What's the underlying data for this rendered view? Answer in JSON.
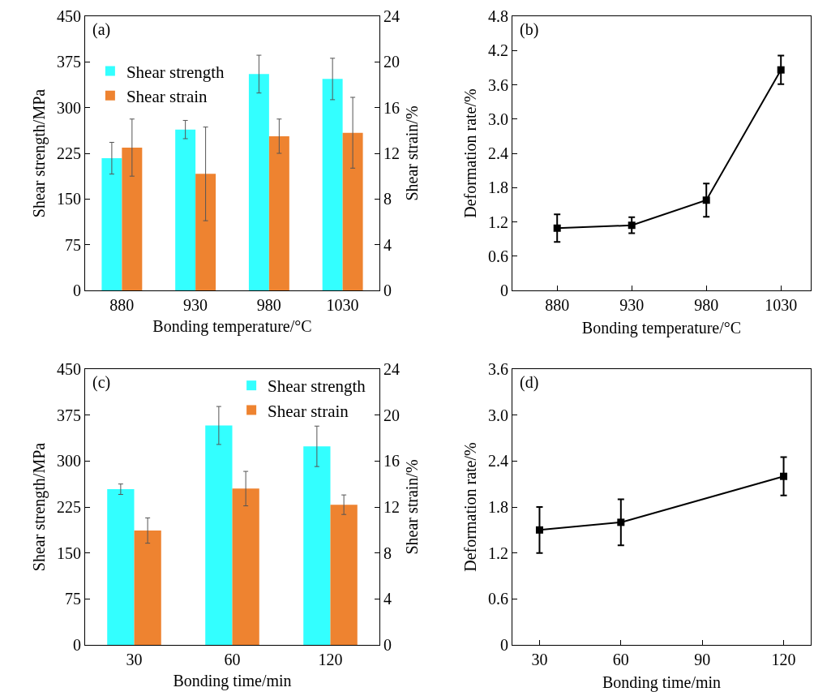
{
  "chart_data": [
    {
      "type": "bar",
      "xlabel": "Bonding temperature/°C",
      "ylabel": "Shear strength/MPa",
      "y2label": "Shear strain/%",
      "annotations": [
        "(a)"
      ],
      "categories": [
        "880",
        "930",
        "980",
        "1030"
      ],
      "series": [
        {
          "name": "Shear strength",
          "color": "#33ffff",
          "values": [
            217,
            264,
            355,
            347
          ],
          "errors": [
            26,
            15,
            31,
            34
          ]
        },
        {
          "name": "Shear strain",
          "color": "#ee8330",
          "axis": "y2",
          "values": [
            12.5,
            10.2,
            13.5,
            13.8
          ],
          "errors": [
            2.5,
            4.1,
            1.5,
            3.1
          ]
        }
      ],
      "ylim": [
        0,
        450
      ],
      "yticks": [
        0,
        75,
        150,
        225,
        300,
        375,
        450
      ],
      "y2lim": [
        0,
        24
      ],
      "y2ticks": [
        0,
        4,
        8,
        12,
        16,
        20,
        24
      ],
      "legend": "top left",
      "grid": false
    },
    {
      "type": "line",
      "xlabel": "Bonding temperature/°C",
      "ylabel": "Deformation rate/%",
      "annotations": [
        "(b)"
      ],
      "x": [
        880,
        930,
        980,
        1030
      ],
      "series": [
        {
          "color": "#000000",
          "values": [
            1.09,
            1.14,
            1.58,
            3.86
          ],
          "errors": [
            0.24,
            0.14,
            0.29,
            0.25
          ]
        }
      ],
      "xlim": [
        850,
        1050
      ],
      "xticks": [
        880,
        930,
        980,
        1030
      ],
      "ylim": [
        0,
        4.8
      ],
      "yticks": [
        0,
        0.6,
        1.2,
        1.8,
        2.4,
        {
          "value": 3.0,
          "label": "3.0"
        },
        3.6,
        4.2,
        4.8
      ],
      "marker": "square",
      "line_style": "solid",
      "legend": false,
      "grid": false
    },
    {
      "type": "bar",
      "xlabel": "Bonding time/min",
      "ylabel": "Shear strength/MPa",
      "y2label": "Shear strain/%",
      "annotations": [
        "(c)"
      ],
      "categories": [
        "30",
        "60",
        "120"
      ],
      "series": [
        {
          "name": "Shear strength",
          "color": "#33ffff",
          "values": [
            254,
            358,
            324
          ],
          "errors": [
            8.5,
            31,
            33
          ]
        },
        {
          "name": "Shear strain",
          "color": "#ee8330",
          "axis": "y2",
          "values": [
            9.95,
            13.6,
            12.2
          ],
          "errors": [
            1.1,
            1.5,
            0.85
          ]
        }
      ],
      "ylim": [
        0,
        450
      ],
      "yticks": [
        0,
        75,
        150,
        225,
        300,
        375,
        450
      ],
      "y2lim": [
        0,
        24
      ],
      "y2ticks": [
        0,
        4,
        8,
        12,
        16,
        20,
        24
      ],
      "legend": "top right",
      "grid": false
    },
    {
      "type": "line",
      "xlabel": "Bonding time/min",
      "ylabel": "Deformation rate/%",
      "annotations": [
        "(d)"
      ],
      "x": [
        30,
        60,
        120
      ],
      "series": [
        {
          "color": "#000000",
          "values": [
            1.5,
            1.6,
            2.2
          ],
          "errors": [
            0.3,
            0.3,
            0.25
          ]
        }
      ],
      "xlim": [
        20,
        130
      ],
      "xticks": [
        30,
        60,
        90,
        120
      ],
      "ylim": [
        0,
        3.6
      ],
      "yticks": [
        0,
        0.6,
        1.2,
        1.8,
        2.4,
        {
          "value": 3.0,
          "label": "3.0"
        },
        3.6
      ],
      "marker": "square",
      "line_style": "solid",
      "legend": false,
      "grid": false
    }
  ]
}
